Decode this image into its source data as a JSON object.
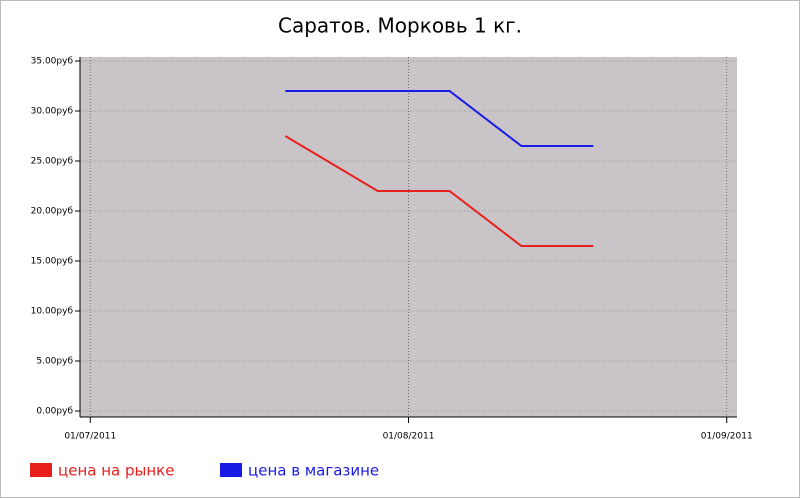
{
  "chart_data": {
    "type": "line",
    "title": "Саратов. Морковь 1 кг.",
    "x": [
      "2011-07-20",
      "2011-07-29",
      "2011-08-05",
      "2011-08-12",
      "2011-08-19"
    ],
    "series": [
      {
        "name": "цена на рынке",
        "color": "#e8201c",
        "values": [
          27.5,
          22,
          22,
          16.5,
          16.5
        ]
      },
      {
        "name": "цена в магазине",
        "color": "#1a1ae6",
        "values": [
          32,
          32,
          32,
          26.5,
          26.5
        ]
      }
    ],
    "xlim": [
      "2011-06-30",
      "2011-09-02"
    ],
    "xticks": [
      {
        "value": "2011-07-01",
        "label": "01/07/2011"
      },
      {
        "value": "2011-08-01",
        "label": "01/08/2011"
      },
      {
        "value": "2011-09-01",
        "label": "01/09/2011"
      }
    ],
    "ylim": [
      -0.6,
      35.4
    ],
    "yticks": [
      {
        "value": 0,
        "label": "0.00руб"
      },
      {
        "value": 5,
        "label": "5.00руб"
      },
      {
        "value": 10,
        "label": "10.00руб"
      },
      {
        "value": 15,
        "label": "15.00руб"
      },
      {
        "value": 20,
        "label": "20.00руб"
      },
      {
        "value": 25,
        "label": "25.00руб"
      },
      {
        "value": 30,
        "label": "30.00руб"
      },
      {
        "value": 35,
        "label": "35.00руб"
      }
    ],
    "grid": true,
    "legend": "bottom"
  }
}
